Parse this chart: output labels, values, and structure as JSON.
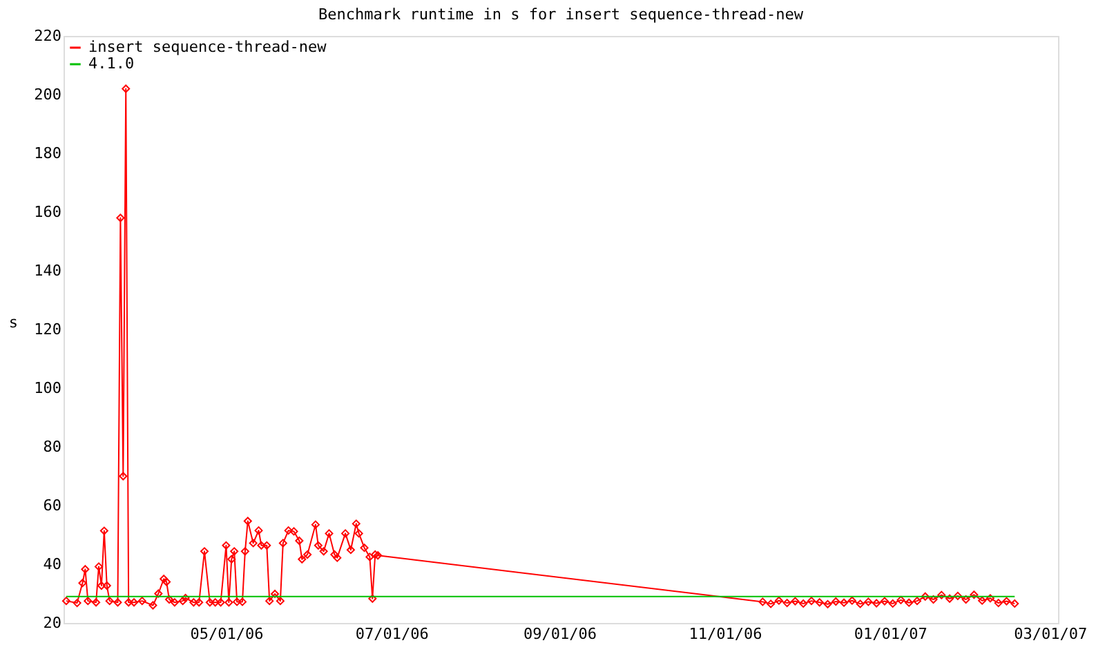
{
  "chart_data": {
    "type": "line",
    "title": "Benchmark runtime in s for insert sequence-thread-new",
    "ylabel": "s",
    "xlim": [
      "2006-03-02",
      "2007-03-04"
    ],
    "xticks": [
      {
        "value": "2006-05-01",
        "label": "05/01/06"
      },
      {
        "value": "2006-07-01",
        "label": "07/01/06"
      },
      {
        "value": "2006-09-01",
        "label": "09/01/06"
      },
      {
        "value": "2006-11-01",
        "label": "11/01/06"
      },
      {
        "value": "2007-01-01",
        "label": "01/01/07"
      },
      {
        "value": "2007-03-01",
        "label": "03/01/07"
      }
    ],
    "ylim": [
      20,
      220
    ],
    "yticks": [
      20,
      40,
      60,
      80,
      100,
      120,
      140,
      160,
      180,
      200,
      220
    ],
    "grid": false,
    "legend": "top left",
    "series": [
      {
        "name": "insert sequence-thread-new",
        "color": "#ff0000",
        "marker": "diamond",
        "x": [
          "2006-03-03",
          "2006-03-07",
          "2006-03-09",
          "2006-03-10",
          "2006-03-11",
          "2006-03-14",
          "2006-03-15",
          "2006-03-16",
          "2006-03-17",
          "2006-03-18",
          "2006-03-19",
          "2006-03-22",
          "2006-03-23",
          "2006-03-24",
          "2006-03-25",
          "2006-03-26",
          "2006-03-28",
          "2006-03-31",
          "2006-04-04",
          "2006-04-06",
          "2006-04-08",
          "2006-04-09",
          "2006-04-10",
          "2006-04-12",
          "2006-04-15",
          "2006-04-16",
          "2006-04-19",
          "2006-04-21",
          "2006-04-23",
          "2006-04-25",
          "2006-04-27",
          "2006-04-29",
          "2006-05-01",
          "2006-05-02",
          "2006-05-03",
          "2006-05-04",
          "2006-05-05",
          "2006-05-07",
          "2006-05-08",
          "2006-05-09",
          "2006-05-11",
          "2006-05-13",
          "2006-05-14",
          "2006-05-16",
          "2006-05-17",
          "2006-05-19",
          "2006-05-21",
          "2006-05-22",
          "2006-05-24",
          "2006-05-26",
          "2006-05-28",
          "2006-05-29",
          "2006-05-31",
          "2006-06-03",
          "2006-06-04",
          "2006-06-06",
          "2006-06-08",
          "2006-06-10",
          "2006-06-11",
          "2006-06-14",
          "2006-06-16",
          "2006-06-18",
          "2006-06-19",
          "2006-06-21",
          "2006-06-23",
          "2006-06-24",
          "2006-06-25",
          "2006-06-26",
          "2006-11-15",
          "2006-11-18",
          "2006-11-21",
          "2006-11-24",
          "2006-11-27",
          "2006-11-30",
          "2006-12-03",
          "2006-12-06",
          "2006-12-09",
          "2006-12-12",
          "2006-12-15",
          "2006-12-18",
          "2006-12-21",
          "2006-12-24",
          "2006-12-27",
          "2006-12-30",
          "2007-01-02",
          "2007-01-05",
          "2007-01-08",
          "2007-01-11",
          "2007-01-14",
          "2007-01-17",
          "2007-01-20",
          "2007-01-23",
          "2007-01-26",
          "2007-01-29",
          "2007-02-01",
          "2007-02-04",
          "2007-02-07",
          "2007-02-10",
          "2007-02-13",
          "2007-02-16"
        ],
        "values": [
          27.5,
          26.8,
          33.6,
          38.3,
          27.5,
          27,
          39.2,
          32.7,
          51.4,
          32.7,
          27.5,
          27,
          158,
          70,
          202,
          27,
          27,
          27.5,
          26,
          30,
          35,
          34,
          28,
          27,
          27.5,
          28.5,
          27,
          27,
          44.4,
          27,
          27,
          27,
          46.4,
          27,
          41.7,
          44.4,
          27.2,
          27.2,
          44.4,
          54.7,
          47.2,
          51.5,
          46.4,
          46.4,
          27.5,
          29.9,
          27.5,
          47.2,
          51.5,
          51.2,
          48,
          41.7,
          43.3,
          53.5,
          46.4,
          44.4,
          50.5,
          43.3,
          42.2,
          50.5,
          44.9,
          53.8,
          50.5,
          45.6,
          42.5,
          28.3,
          43.3,
          43,
          27.2,
          26.5,
          27.6,
          26.8,
          27.4,
          26.6,
          27.5,
          27,
          26.4,
          27.3,
          26.9,
          27.6,
          26.5,
          27.2,
          26.7,
          27.4,
          26.6,
          27.8,
          26.9,
          27.5,
          29,
          28,
          29.5,
          28.3,
          29.2,
          28,
          29.6,
          27.6,
          28.4,
          26.8,
          27.4,
          26.6
        ]
      },
      {
        "name": "4.1.0",
        "color": "#00c000",
        "marker": "none",
        "x": [
          "2006-03-03",
          "2007-02-16"
        ],
        "values": [
          29,
          29
        ]
      }
    ]
  }
}
